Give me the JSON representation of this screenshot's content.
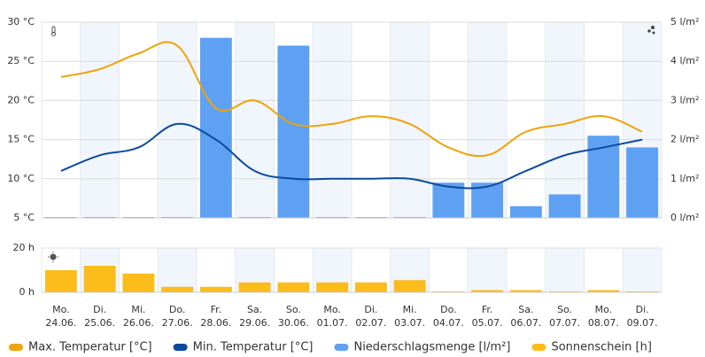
{
  "chart_data": [
    {
      "type": "combo",
      "ylim": [
        5,
        30
      ],
      "yticks": [
        {
          "value": 5,
          "label": "5 °C"
        },
        {
          "value": 10,
          "label": "10 °C"
        },
        {
          "value": 15,
          "label": "15 °C"
        },
        {
          "value": 20,
          "label": "20 °C"
        },
        {
          "value": 25,
          "label": "25 °C"
        },
        {
          "value": 30,
          "label": "30 °C"
        }
      ],
      "y2lim": [
        0,
        5
      ],
      "y2ticks": [
        {
          "value": 0,
          "label": "0 l/m²"
        },
        {
          "value": 1,
          "label": "1 l/m²"
        },
        {
          "value": 2,
          "label": "2 l/m²"
        },
        {
          "value": 3,
          "label": "3 l/m²"
        },
        {
          "value": 4,
          "label": "4 l/m²"
        },
        {
          "value": 5,
          "label": "5 l/m²"
        }
      ],
      "grid": true,
      "series": [
        {
          "name": "Max. Temperatur [°C]",
          "type": "line",
          "color": "#f0a30a",
          "values": [
            23,
            24,
            26,
            27,
            19,
            20,
            17,
            17,
            18,
            17,
            14,
            13,
            16,
            17,
            18,
            16
          ]
        },
        {
          "name": "Min. Temperatur [°C]",
          "type": "line",
          "color": "#0b4a9e",
          "values": [
            11,
            13,
            14,
            17,
            15,
            11,
            10,
            10,
            10,
            10,
            9,
            9,
            11,
            13,
            14,
            15
          ]
        },
        {
          "name": "Niederschlagsmenge [l/m²]",
          "type": "bar",
          "axis": "y2",
          "color": "#5ea1f2",
          "values": [
            0,
            0,
            0,
            0,
            4.6,
            0,
            4.4,
            0,
            0,
            0,
            0.9,
            0.9,
            0.3,
            0.6,
            2.1,
            1.8
          ]
        }
      ]
    },
    {
      "type": "bar",
      "categories": [
        [
          "Mo.",
          "24.06."
        ],
        [
          "Di.",
          "25.06."
        ],
        [
          "Mi.",
          "26.06."
        ],
        [
          "Do.",
          "27.06."
        ],
        [
          "Fr.",
          "28.06."
        ],
        [
          "Sa.",
          "29.06."
        ],
        [
          "So.",
          "30.06."
        ],
        [
          "Mo.",
          "01.07."
        ],
        [
          "Di.",
          "02.07."
        ],
        [
          "Mi.",
          "03.07."
        ],
        [
          "Do.",
          "04.07."
        ],
        [
          "Fr.",
          "05.07."
        ],
        [
          "Sa.",
          "06.07."
        ],
        [
          "So.",
          "07.07."
        ],
        [
          "Mo.",
          "08.07."
        ],
        [
          "Di.",
          "09.07."
        ]
      ],
      "ylim": [
        0,
        20
      ],
      "yticks": [
        {
          "value": 0,
          "label": "0 h"
        },
        {
          "value": 20,
          "label": "20 h"
        }
      ],
      "grid": true,
      "series": [
        {
          "name": "Sonnenschein [h]",
          "type": "bar",
          "color": "#fbbc1c",
          "values": [
            10,
            12,
            8.5,
            2.5,
            2.5,
            4.5,
            4.5,
            4.5,
            4.5,
            5.5,
            0,
            1,
            1,
            0,
            1,
            0
          ]
        }
      ]
    }
  ]
}
